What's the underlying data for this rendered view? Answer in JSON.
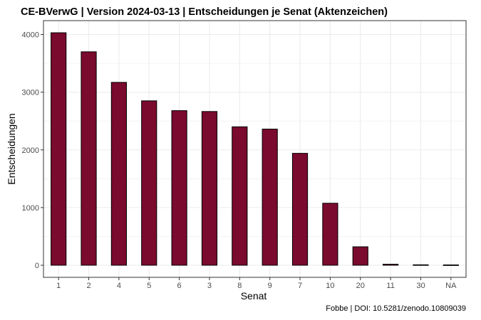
{
  "chart_data": {
    "type": "bar",
    "title": "CE-BVerwG | Version 2024-03-13 | Entscheidungen je Senat (Aktenzeichen)",
    "xlabel": "Senat",
    "ylabel": "Entscheidungen",
    "caption": "Fobbe | DOI: 10.5281/zenodo.10809039",
    "categories": [
      "1",
      "2",
      "4",
      "5",
      "6",
      "3",
      "8",
      "9",
      "7",
      "10",
      "20",
      "11",
      "30",
      "NA"
    ],
    "values": [
      4030,
      3700,
      3170,
      2850,
      2680,
      2665,
      2400,
      2360,
      1940,
      1075,
      320,
      18,
      8,
      6
    ],
    "yticks": [
      0,
      1000,
      2000,
      3000,
      4000
    ],
    "ylim": [
      -200,
      4240
    ],
    "grid": true,
    "legend": "none"
  },
  "colors": {
    "bar_fill": "#7a0a2e",
    "bar_stroke": "#000000",
    "grid": "#ebebeb",
    "panel_border": "#333333"
  }
}
